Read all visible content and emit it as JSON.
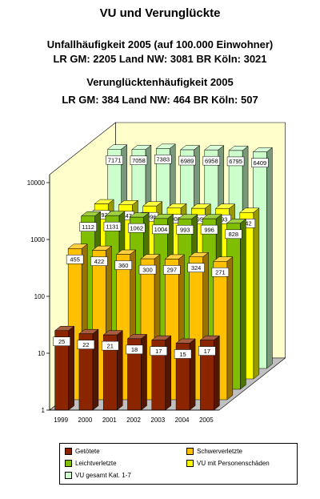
{
  "header": {
    "title": "VU und Verunglückte",
    "subtitle1_line1": "Unfallhäufigkeit 2005 (auf 100.000 Einwohner)",
    "subtitle1_line2": "LR GM: 2205   Land NW: 3081   BR Köln: 3021",
    "subtitle2_line1": "Verunglücktenhäufigkeit 2005",
    "subtitle2_line2": "LR GM: 384   Land NW: 464   BR Köln: 507"
  },
  "chart_data": {
    "type": "bar",
    "style": "3d-clustered-depth",
    "scale": "log",
    "ylim": [
      1,
      10000
    ],
    "yticks": [
      "1",
      "10",
      "100",
      "1000",
      "10000"
    ],
    "categories": [
      "1999",
      "2000",
      "2001",
      "2002",
      "2003",
      "2004",
      "2005"
    ],
    "series": [
      {
        "name": "Getötete",
        "color": "#8b2500",
        "values": [
          25,
          22,
          21,
          18,
          17,
          15,
          17
        ]
      },
      {
        "name": "Schwerverletzte",
        "color": "#ffc000",
        "values": [
          455,
          422,
          360,
          300,
          297,
          324,
          271
        ]
      },
      {
        "name": "Leichtverletzte",
        "color": "#7fbe00",
        "values": [
          1112,
          1131,
          1062,
          1004,
          993,
          996,
          828
        ]
      },
      {
        "name": "VU mit Personenschäden",
        "color": "#ffff00",
        "values": [
          1192,
          1147,
          1096,
          1008,
          995,
          993,
          842
        ]
      },
      {
        "name": "VU gesamt Kat. 1-7",
        "color": "#ccffcc",
        "values": [
          7171,
          7058,
          7383,
          6989,
          6958,
          6795,
          6409
        ]
      }
    ],
    "legend_position": "bottom",
    "grid": false
  }
}
